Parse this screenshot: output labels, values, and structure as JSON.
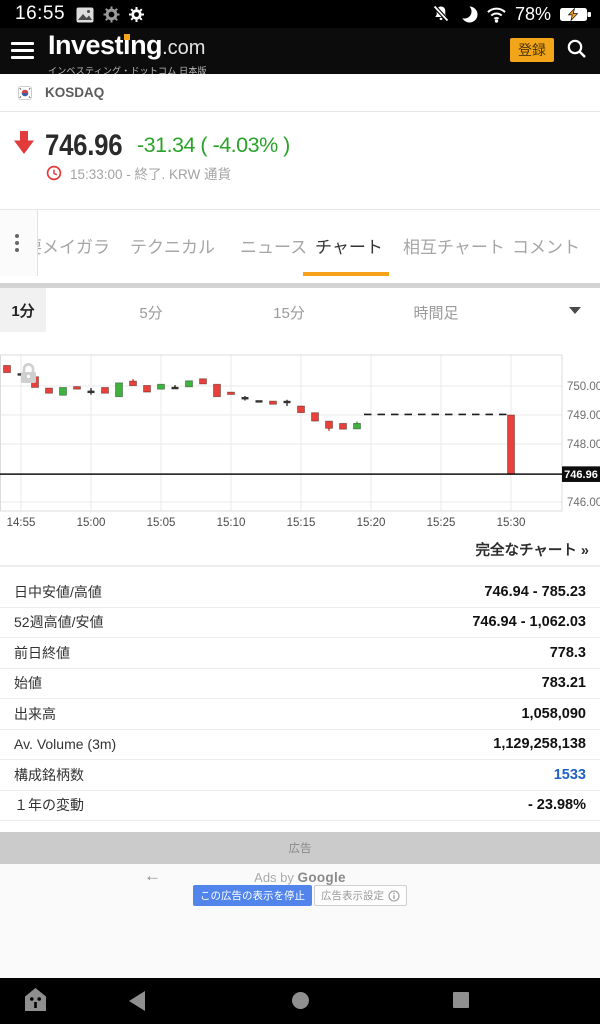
{
  "status_bar": {
    "time": "16:55",
    "battery_pct": "78%"
  },
  "header": {
    "logo": "Investing",
    "logo_tld": ".com",
    "tagline": "インベスティング・ドットコム 日本版",
    "signup_label": "登録"
  },
  "instrument": {
    "flag": "south-korea",
    "name": "KOSDAQ"
  },
  "quote": {
    "price": "746.96",
    "change": "-31.34 ( -4.03% )",
    "meta": "15:33:00 - 終了. KRW 通貨"
  },
  "tabs": {
    "items": [
      {
        "id": "constituents",
        "label": "主要メイガラ",
        "active": false
      },
      {
        "id": "technical",
        "label": "テクニカル",
        "active": false
      },
      {
        "id": "news",
        "label": "ニュース",
        "active": false
      },
      {
        "id": "chart",
        "label": "チャート",
        "active": true
      },
      {
        "id": "multi-chart",
        "label": "相互チャート",
        "active": false
      },
      {
        "id": "comments",
        "label": "コメント",
        "active": false
      }
    ]
  },
  "timeframes": {
    "selected": "1分",
    "items": [
      {
        "id": "1m",
        "label": "1分",
        "selected": true
      },
      {
        "id": "5m",
        "label": "5分",
        "selected": false
      },
      {
        "id": "15m",
        "label": "15分",
        "selected": false
      },
      {
        "id": "hourly",
        "label": "時間足",
        "selected": false
      }
    ]
  },
  "chart_data": {
    "type": "candlestick",
    "interval": "1分",
    "x_ticks": [
      "14:55",
      "15:00",
      "15:05",
      "15:10",
      "15:15",
      "15:20",
      "15:25",
      "15:30"
    ],
    "y_ticks": [
      "750.00",
      "749.00",
      "748.00",
      "746.00"
    ],
    "y_grid": [
      750,
      749,
      748,
      746
    ],
    "candles": [
      {
        "t": "14:54",
        "o": 750.71,
        "c": 750.46,
        "col": "r"
      },
      {
        "t": "14:55",
        "o": 750.44,
        "c": 750.44,
        "col": "k"
      },
      {
        "t": "14:56",
        "o": 750.32,
        "c": 749.95,
        "col": "r"
      },
      {
        "t": "14:57",
        "o": 749.93,
        "c": 749.75,
        "col": "r"
      },
      {
        "t": "14:58",
        "o": 749.68,
        "c": 749.95,
        "col": "g"
      },
      {
        "t": "14:59",
        "o": 749.98,
        "c": 749.89,
        "col": "r"
      },
      {
        "t": "15:00",
        "o": 749.84,
        "c": 749.84,
        "hi": 749.93,
        "lo": 749.7,
        "col": "k"
      },
      {
        "t": "15:01",
        "o": 749.95,
        "c": 749.75,
        "col": "r"
      },
      {
        "t": "15:02",
        "o": 749.63,
        "c": 750.11,
        "col": "g"
      },
      {
        "t": "15:03",
        "o": 750.17,
        "c": 750.01,
        "hi": 750.24,
        "col": "r"
      },
      {
        "t": "15:04",
        "o": 750.02,
        "c": 749.79,
        "col": "r"
      },
      {
        "t": "15:05",
        "o": 749.89,
        "c": 750.06,
        "col": "g"
      },
      {
        "t": "15:06",
        "o": 749.97,
        "c": 749.97,
        "hi": 750.03,
        "lo": 749.9,
        "col": "k"
      },
      {
        "t": "15:07",
        "o": 749.97,
        "c": 750.18,
        "col": "g"
      },
      {
        "t": "15:08",
        "o": 750.25,
        "c": 750.07,
        "col": "r"
      },
      {
        "t": "15:09",
        "o": 750.06,
        "c": 749.63,
        "col": "r"
      },
      {
        "t": "15:10",
        "o": 749.79,
        "c": 749.71,
        "col": "r"
      },
      {
        "t": "15:11",
        "o": 749.62,
        "c": 749.62,
        "lo": 749.5,
        "col": "k"
      },
      {
        "t": "15:12",
        "o": 749.51,
        "c": 749.51,
        "col": "k"
      },
      {
        "t": "15:13",
        "o": 749.48,
        "c": 749.37,
        "col": "r"
      },
      {
        "t": "15:14",
        "o": 749.49,
        "c": 749.49,
        "lo": 749.31,
        "col": "k"
      },
      {
        "t": "15:15",
        "o": 749.31,
        "c": 749.08,
        "col": "r"
      },
      {
        "t": "15:16",
        "o": 749.08,
        "c": 748.79,
        "col": "r"
      },
      {
        "t": "15:17",
        "o": 748.79,
        "c": 748.54,
        "lo": 748.45,
        "col": "r"
      },
      {
        "t": "15:18",
        "o": 748.71,
        "c": 748.51,
        "col": "r"
      },
      {
        "t": "15:19",
        "o": 748.52,
        "c": 748.71,
        "hi": 748.78,
        "col": "g"
      }
    ],
    "closing_bar": {
      "t": "15:30",
      "o": 749.0,
      "c": 746.96,
      "col": "r"
    },
    "dashed_line": {
      "level": 749.02,
      "from": "15:19",
      "to": "15:30"
    },
    "last_price_line": 746.96,
    "last_price_label": "746.96",
    "colors": {
      "up": "#3db33d",
      "down": "#e8403a",
      "doji": "#333333"
    }
  },
  "full_chart_link": "完全なチャート »",
  "stats": {
    "rows": [
      {
        "label": "日中安値/高値",
        "value": "746.94 - 785.23"
      },
      {
        "label": "52週高値/安値",
        "value": "746.94 - 1,062.03"
      },
      {
        "label": "前日終値",
        "value": "778.3"
      },
      {
        "label": "始値",
        "value": "783.21"
      },
      {
        "label": "出来高",
        "value": "1,058,090"
      },
      {
        "label": "Av. Volume (3m)",
        "value": "1,129,258,138"
      },
      {
        "label": "構成銘柄数",
        "value": "1533",
        "link": true
      },
      {
        "label": "１年の変動",
        "value": "- 23.98%"
      }
    ]
  },
  "ad": {
    "band_label": "広告",
    "back_arrow": "←",
    "provider_prefix": "Ads by ",
    "provider_brand": "Google",
    "stop_button": "この広告の表示を停止",
    "settings_button": "広告表示設定"
  }
}
